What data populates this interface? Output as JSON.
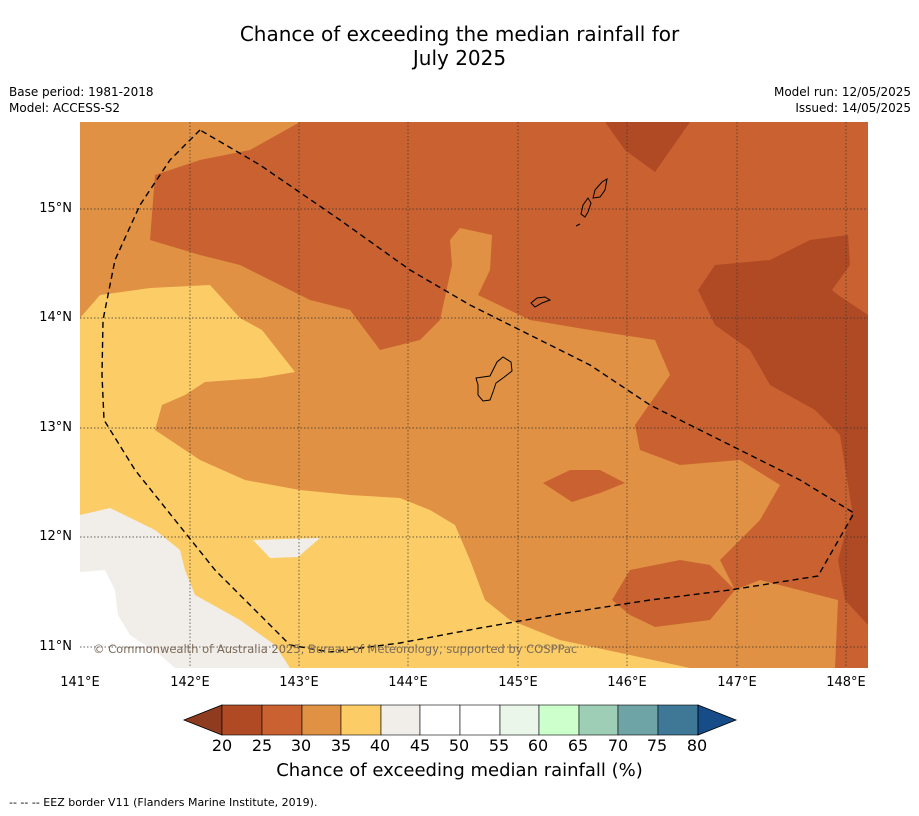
{
  "title": {
    "line1": "Chance of exceeding the median rainfall for",
    "line2": "July 2025"
  },
  "meta_left": {
    "base_period": "Base period: 1981-2018",
    "model": "Model: ACCESS-S2"
  },
  "meta_right": {
    "model_run": "Model run: 12/05/2025",
    "issued": "Issued: 14/05/2025"
  },
  "map": {
    "lat_ticks": [
      "15°N",
      "14°N",
      "13°N",
      "12°N",
      "11°N"
    ],
    "lon_ticks": [
      "141°E",
      "142°E",
      "143°E",
      "144°E",
      "145°E",
      "146°E",
      "147°E",
      "148°E"
    ],
    "copyright": "© Commonwealth of Australia 2025, Bureau of Meteorology, supported by COSPPac",
    "category_colors": {
      "20-25": "#b04a25",
      "25-30": "#c96230",
      "30-35": "#e09144",
      "35-40": "#fccc66",
      "40-45": "#f1ede8",
      "45-55": "#ffffff"
    }
  },
  "colorbar": {
    "title": "Chance of exceeding median rainfall (%)",
    "labels": [
      "20",
      "25",
      "30",
      "35",
      "40",
      "45",
      "50",
      "55",
      "60",
      "65",
      "70",
      "75",
      "80"
    ],
    "colors": [
      "#b04a25",
      "#c96230",
      "#e09144",
      "#fccc66",
      "#f1ede8",
      "#ffffff",
      "#ffffff",
      "#e9f6e9",
      "#ccffcc",
      "#9ecfb6",
      "#6fa4a6",
      "#3f7896"
    ],
    "under_color": "#8e3b20",
    "over_color": "#164d88"
  },
  "footer": "-- -- -- EEZ border V11 (Flanders Marine Institute, 2019)."
}
